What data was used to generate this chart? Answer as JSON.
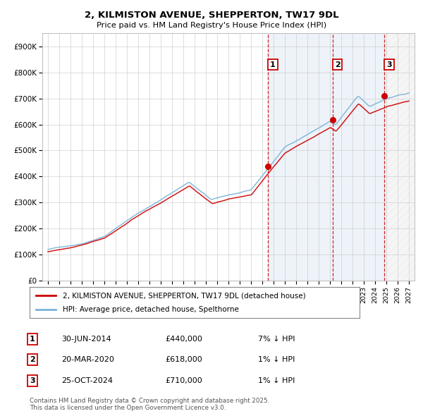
{
  "title_line1": "2, KILMISTON AVENUE, SHEPPERTON, TW17 9DL",
  "title_line2": "Price paid vs. HM Land Registry's House Price Index (HPI)",
  "ylim": [
    0,
    950000
  ],
  "yticks": [
    0,
    100000,
    200000,
    300000,
    400000,
    500000,
    600000,
    700000,
    800000,
    900000
  ],
  "ytick_labels": [
    "£0",
    "£100K",
    "£200K",
    "£300K",
    "£400K",
    "£500K",
    "£600K",
    "£700K",
    "£800K",
    "£900K"
  ],
  "xlim_start": 1994.5,
  "xlim_end": 2027.5,
  "xticks": [
    1995,
    1996,
    1997,
    1998,
    1999,
    2000,
    2001,
    2002,
    2003,
    2004,
    2005,
    2006,
    2007,
    2008,
    2009,
    2010,
    2011,
    2012,
    2013,
    2014,
    2015,
    2016,
    2017,
    2018,
    2019,
    2020,
    2021,
    2022,
    2023,
    2024,
    2025,
    2026,
    2027
  ],
  "sale_dates": [
    2014.497,
    2020.22,
    2024.815
  ],
  "sale_prices": [
    440000,
    618000,
    710000
  ],
  "sale_labels": [
    "1",
    "2",
    "3"
  ],
  "sale_info": [
    {
      "label": "1",
      "date": "30-JUN-2014",
      "price": "£440,000",
      "pct": "7% ↓ HPI"
    },
    {
      "label": "2",
      "date": "20-MAR-2020",
      "price": "£618,000",
      "pct": "1% ↓ HPI"
    },
    {
      "label": "3",
      "date": "25-OCT-2024",
      "price": "£710,000",
      "pct": "1% ↓ HPI"
    }
  ],
  "hpi_color": "#7ab4d8",
  "price_color": "#cc0000",
  "sale_marker_color": "#cc0000",
  "sale_vline_color": "#cc0000",
  "highlight_bg": "#dce9f5",
  "hatch_color": "#cccccc",
  "footnote": "Contains HM Land Registry data © Crown copyright and database right 2025.\nThis data is licensed under the Open Government Licence v3.0.",
  "legend_line1": "2, KILMISTON AVENUE, SHEPPERTON, TW17 9DL (detached house)",
  "legend_line2": "HPI: Average price, detached house, Spelthorne",
  "label_box_color": "#cc0000",
  "grid_color": "#d0d0d0"
}
